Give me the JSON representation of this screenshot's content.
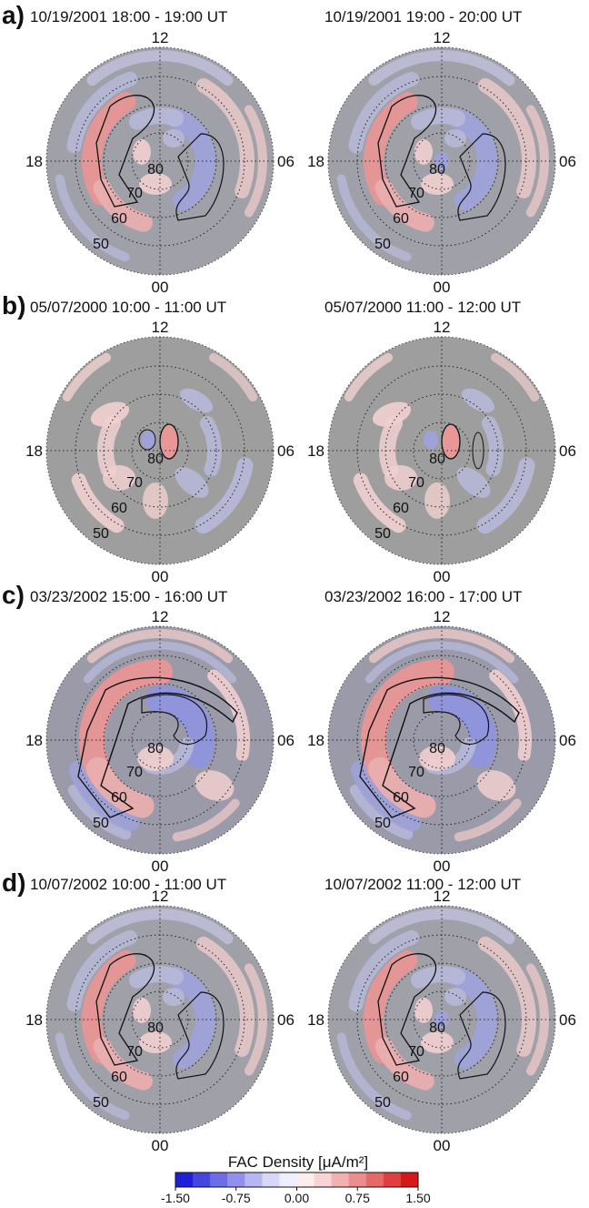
{
  "rows": [
    {
      "label": "a)",
      "panels": [
        {
          "title": "10/19/2001  18:00 - 19:00 UT",
          "style": "strong"
        },
        {
          "title": "10/19/2001  19:00 - 20:00 UT",
          "style": "strong"
        }
      ]
    },
    {
      "label": "b)",
      "panels": [
        {
          "title": "05/07/2000  10:00 - 11:00 UT",
          "style": "weak"
        },
        {
          "title": "05/07/2000  11:00 - 12:00 UT",
          "style": "weak"
        }
      ]
    },
    {
      "label": "c)",
      "panels": [
        {
          "title": "03/23/2002  15:00 - 16:00 UT",
          "style": "storm"
        },
        {
          "title": "03/23/2002  16:00 - 17:00 UT",
          "style": "storm"
        }
      ]
    },
    {
      "label": "d)",
      "panels": [
        {
          "title": "10/07/2002  10:00 - 11:00 UT",
          "style": "strong"
        },
        {
          "title": "10/07/2002  11:00 - 12:00 UT",
          "style": "strong"
        }
      ]
    }
  ],
  "clock_labels": {
    "top": "12",
    "bottom": "00",
    "left": "18",
    "right": "06"
  },
  "latitude_labels": [
    "80",
    "70",
    "60",
    "50"
  ],
  "colorbar": {
    "title": "FAC Density [μA/m²]",
    "ticks": [
      "-1.50",
      "-0.75",
      "0.00",
      "0.75",
      "1.50"
    ],
    "range": [
      -1.5,
      1.5
    ],
    "colors": [
      "#1f1fd6",
      "#4747e0",
      "#6c6ce6",
      "#9191ec",
      "#b6b6f2",
      "#d6d6f7",
      "#eeeeff",
      "#ffecec",
      "#f7d3d3",
      "#f2b1b1",
      "#ec8d8d",
      "#e66868",
      "#e03f3f",
      "#d61818"
    ]
  }
}
